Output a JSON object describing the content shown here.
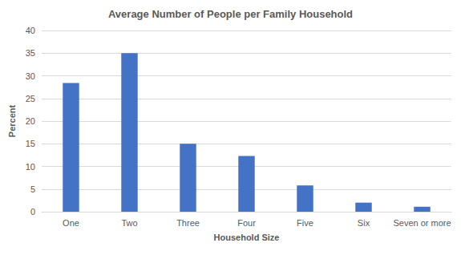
{
  "chart_data": {
    "type": "bar",
    "title": "Average Number of People per Family Household",
    "x_label": "Household Size",
    "y_label": "Percent",
    "categories": [
      "One",
      "Two",
      "Three",
      "Four",
      "Five",
      "Six",
      "Seven or more"
    ],
    "values": [
      28.4,
      35,
      15,
      12.3,
      5.8,
      2,
      1.1
    ],
    "color": "#4472c4",
    "ylim": [
      0,
      40
    ],
    "yticks": [
      0,
      5,
      10,
      15,
      20,
      25,
      30,
      35,
      40
    ],
    "grid": true
  }
}
